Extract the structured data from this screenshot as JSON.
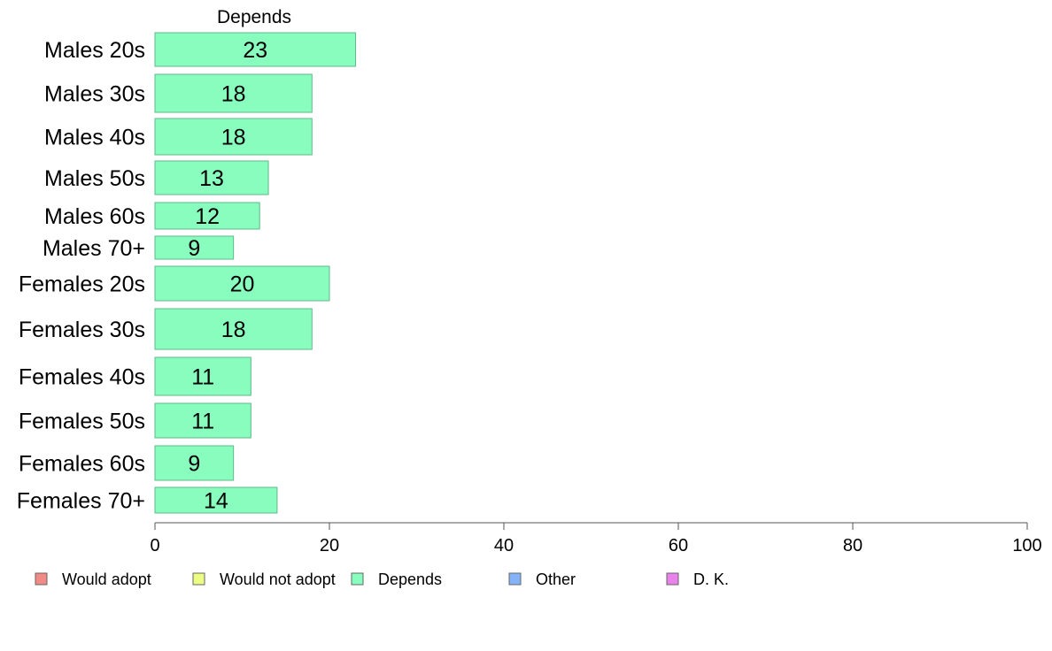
{
  "chart_data": {
    "type": "bar",
    "orientation": "horizontal",
    "title": "Depends",
    "categories": [
      "Males 20s",
      "Males 30s",
      "Males 40s",
      "Males 50s",
      "Males 60s",
      "Males 70+",
      "Females 20s",
      "Females 30s",
      "Females 40s",
      "Females 50s",
      "Females 60s",
      "Females 70+"
    ],
    "values": [
      23,
      18,
      18,
      13,
      12,
      9,
      20,
      18,
      11,
      11,
      9,
      14
    ],
    "value_labels": [
      "23",
      "18",
      "18",
      "13",
      "12",
      "9",
      "20",
      "18",
      "11",
      "11",
      "9",
      "14"
    ],
    "xlim": [
      0,
      100
    ],
    "xticks": [
      0,
      20,
      40,
      60,
      80,
      100
    ],
    "xtick_labels": [
      "0",
      "20",
      "40",
      "60",
      "80",
      "100"
    ],
    "grid": false,
    "legend_position": "bottom",
    "legend": [
      {
        "label": "Would adopt",
        "color": "#f28b86"
      },
      {
        "label": "Would not adopt",
        "color": "#ecfd84"
      },
      {
        "label": "Depends",
        "color": "#88fdbe"
      },
      {
        "label": "Other",
        "color": "#84b4f7"
      },
      {
        "label": "D. K.",
        "color": "#ea82ec"
      }
    ],
    "bar_color": "#88fdbe",
    "bar_edge_color": "#5fb98a"
  }
}
